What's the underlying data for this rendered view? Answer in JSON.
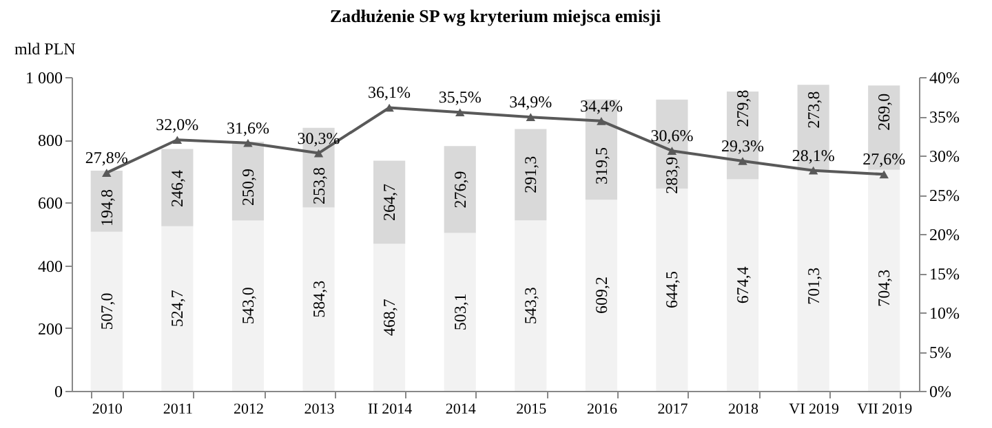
{
  "chart_data": {
    "type": "bar",
    "title": "Zadłużenie SP wg kryterium miejsca emisji",
    "ylabel": "mld PLN",
    "categories": [
      "2010",
      "2011",
      "2012",
      "2013",
      "II 2014",
      "2014",
      "2015",
      "2016",
      "2017",
      "2018",
      "VI 2019",
      "VII 2019"
    ],
    "stacked": true,
    "legend": false,
    "grid": false,
    "marker": "triangle",
    "series": [
      {
        "color": "#f2f2f2",
        "values": [
          507.0,
          524.7,
          543.0,
          584.3,
          468.7,
          503.1,
          543.3,
          609.2,
          644.5,
          674.4,
          701.3,
          704.3
        ],
        "value_labels": [
          "507,0",
          "524,7",
          "543,0",
          "584,3",
          "468,7",
          "503,1",
          "543,3",
          "609,2",
          "644,5",
          "674,4",
          "701,3",
          "704,3"
        ]
      },
      {
        "color": "#d9d9d9",
        "values": [
          194.8,
          246.4,
          250.9,
          253.8,
          264.7,
          276.9,
          291.3,
          319.5,
          283.9,
          279.8,
          273.8,
          269.0
        ],
        "value_labels": [
          "194,8",
          "246,4",
          "250,9",
          "253,8",
          "264,7",
          "276,9",
          "291,3",
          "319,5",
          "283,9",
          "279,8",
          "273,8",
          "269,0"
        ]
      },
      {
        "type": "line",
        "axis": "y2",
        "color": "#595959",
        "values": [
          27.8,
          32.0,
          31.6,
          30.3,
          36.1,
          35.5,
          34.9,
          34.4,
          30.6,
          29.3,
          28.1,
          27.6
        ],
        "value_labels": [
          "27,8%",
          "32,0%",
          "31,6%",
          "30,3%",
          "36,1%",
          "35,5%",
          "34,9%",
          "34,4%",
          "30,6%",
          "29,3%",
          "28,1%",
          "27,6%"
        ]
      }
    ],
    "ylim": [
      0,
      1000
    ],
    "yticks": [
      0,
      200,
      400,
      600,
      800,
      {
        "value": 1000,
        "label": "1 000"
      }
    ],
    "y2lim": [
      0,
      40
    ],
    "y2ticks": [
      {
        "value": 0,
        "label": "0%"
      },
      {
        "value": 5,
        "label": "5%"
      },
      {
        "value": 10,
        "label": "10%"
      },
      {
        "value": 15,
        "label": "15%"
      },
      {
        "value": 20,
        "label": "20%"
      },
      {
        "value": 25,
        "label": "25%"
      },
      {
        "value": 30,
        "label": "30%"
      },
      {
        "value": 35,
        "label": "35%"
      },
      {
        "value": 40,
        "label": "40%"
      }
    ]
  }
}
